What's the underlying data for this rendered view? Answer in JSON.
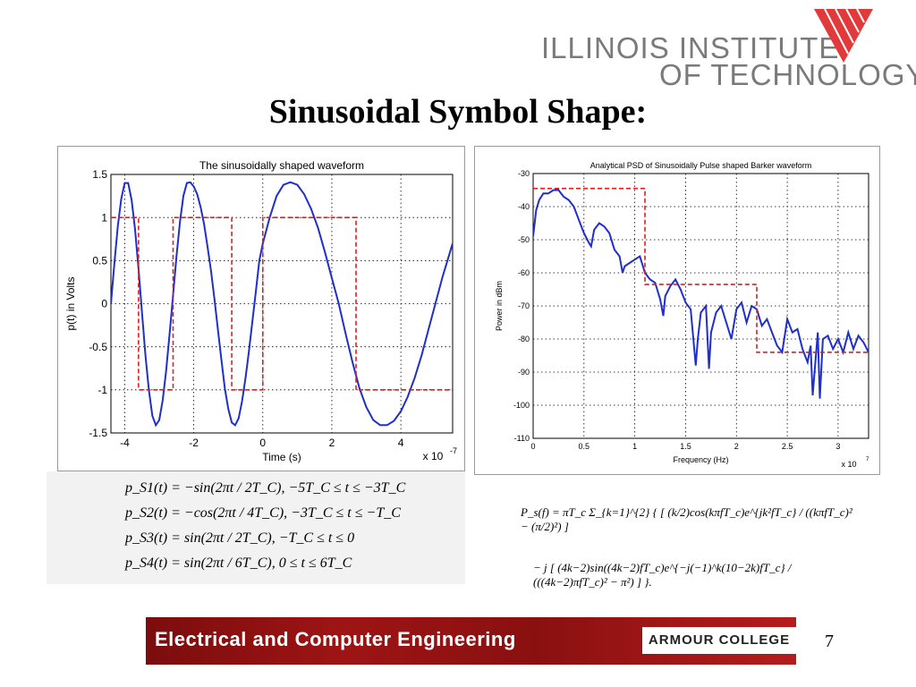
{
  "header": {
    "logo_line1": "ILLINOIS INSTITUTE",
    "logo_line2": "OF TECHNOLOGY",
    "logo_icon": "iit-triangle-logo"
  },
  "slide": {
    "title": "Sinusoidal Symbol Shape:",
    "page_number": "7"
  },
  "footer": {
    "left_text": "Electrical and Computer Engineering",
    "right_text": "ARMOUR COLLEGE",
    "color": "#9e1414"
  },
  "equations_left": [
    "p_S1(t) = −sin(2πt / 2T_C),   −5T_C ≤ t ≤ −3T_C",
    "p_S2(t) = −cos(2πt / 4T_C),   −3T_C ≤ t ≤ −T_C",
    "p_S3(t) = sin(2πt / 2T_C),   −T_C ≤ t ≤ 0",
    "p_S4(t) = sin(2πt / 6T_C),   0 ≤ t ≤ 6T_C"
  ],
  "equation_right": {
    "line1": "P_s(f) = πT_c Σ_{k=1}^{2} { [ (k/2)cos(kπfT_c)e^{jk²fT_c} / ((kπfT_c)² − (π/2)²) ]",
    "line2": "− j [ (4k−2)sin((4k−2)fT_c)e^{−j(−1)^k(10−2k)fT_c} / (((4k−2)πfT_c)² − π²) ] }."
  },
  "chart_data": [
    {
      "type": "line",
      "title": "The sinusoidally shaped waveform",
      "xlabel": "Time (s)",
      "ylabel": "p(t) in Volts",
      "x_multiplier": "x 10",
      "x_multiplier_exp": "-7",
      "xlim": [
        -4.4,
        5.5
      ],
      "ylim": [
        -1.5,
        1.5
      ],
      "xticks": [
        "-4",
        "-2",
        "0",
        "2",
        "4"
      ],
      "yticks": [
        "1.5",
        "1",
        "0.5",
        "0",
        "-0.5",
        "-1",
        "-1.5"
      ],
      "grid": true,
      "series": [
        {
          "color": "#1f2fcc",
          "x": [
            -4.4,
            -4.3,
            -4.2,
            -4.1,
            -4.0,
            -3.9,
            -3.8,
            -3.7,
            -3.6,
            -3.5,
            -3.4,
            -3.3,
            -3.2,
            -3.1,
            -3.0,
            -2.9,
            -2.8,
            -2.7,
            -2.6,
            -2.5,
            -2.4,
            -2.3,
            -2.2,
            -2.1,
            -2.0,
            -1.9,
            -1.8,
            -1.7,
            -1.6,
            -1.5,
            -1.4,
            -1.3,
            -1.2,
            -1.1,
            -1.0,
            -0.9,
            -0.8,
            -0.7,
            -0.6,
            -0.5,
            -0.4,
            -0.3,
            -0.2,
            -0.1,
            0.0,
            0.2,
            0.4,
            0.6,
            0.8,
            1.0,
            1.2,
            1.4,
            1.6,
            1.8,
            2.0,
            2.2,
            2.4,
            2.6,
            2.8,
            3.0,
            3.2,
            3.4,
            3.6,
            3.8,
            4.0,
            4.2,
            4.4,
            4.6,
            4.8,
            5.0,
            5.2,
            5.5
          ],
          "values": [
            0.0,
            0.47,
            0.9,
            1.22,
            1.4,
            1.4,
            1.2,
            0.86,
            0.4,
            -0.1,
            -0.6,
            -1.0,
            -1.3,
            -1.41,
            -1.35,
            -1.12,
            -0.78,
            -0.35,
            0.1,
            0.55,
            0.95,
            1.25,
            1.4,
            1.41,
            1.36,
            1.27,
            1.12,
            0.92,
            0.66,
            0.38,
            0.05,
            -0.3,
            -0.65,
            -0.98,
            -1.22,
            -1.38,
            -1.41,
            -1.33,
            -1.13,
            -0.86,
            -0.55,
            -0.2,
            0.15,
            0.5,
            0.7,
            1.0,
            1.25,
            1.38,
            1.41,
            1.38,
            1.27,
            1.1,
            0.88,
            0.6,
            0.3,
            0.0,
            -0.35,
            -0.68,
            -0.98,
            -1.2,
            -1.35,
            -1.41,
            -1.41,
            -1.36,
            -1.25,
            -1.08,
            -0.86,
            -0.6,
            -0.3,
            0.0,
            0.3,
            0.7
          ]
        },
        {
          "color": "#dd1f1f",
          "style": "dashed",
          "x": [
            -4.4,
            -3.6,
            -3.6,
            -2.6,
            -2.6,
            -0.9,
            -0.9,
            0.0,
            0.0,
            2.7,
            2.7,
            5.5
          ],
          "values": [
            1,
            1,
            -1,
            -1,
            1,
            1,
            -1,
            -1,
            1,
            1,
            -1,
            -1
          ]
        }
      ]
    },
    {
      "type": "line",
      "title": "Analytical PSD of Sinusoidally Pulse shaped Barker waveform",
      "xlabel": "Frequency (Hz)",
      "ylabel": "Power in dBm",
      "x_multiplier": "x 10",
      "x_multiplier_exp": "7",
      "xlim": [
        0,
        3.3
      ],
      "ylim": [
        -110,
        -30
      ],
      "xticks": [
        "0",
        "0.5",
        "1",
        "1.5",
        "2",
        "2.5",
        "3"
      ],
      "yticks": [
        "-30",
        "-40",
        "-50",
        "-60",
        "-70",
        "-80",
        "-90",
        "-100",
        "-110"
      ],
      "grid": true,
      "series": [
        {
          "color": "#1f2fcc",
          "x": [
            0.0,
            0.03,
            0.06,
            0.1,
            0.15,
            0.2,
            0.25,
            0.3,
            0.35,
            0.4,
            0.45,
            0.5,
            0.55,
            0.57,
            0.6,
            0.65,
            0.7,
            0.75,
            0.8,
            0.85,
            0.88,
            0.9,
            0.95,
            1.0,
            1.05,
            1.1,
            1.15,
            1.2,
            1.25,
            1.28,
            1.3,
            1.35,
            1.4,
            1.45,
            1.5,
            1.55,
            1.6,
            1.62,
            1.65,
            1.7,
            1.73,
            1.75,
            1.8,
            1.85,
            1.9,
            1.95,
            2.0,
            2.05,
            2.1,
            2.15,
            2.2,
            2.25,
            2.3,
            2.35,
            2.4,
            2.45,
            2.5,
            2.55,
            2.6,
            2.65,
            2.7,
            2.73,
            2.75,
            2.8,
            2.82,
            2.85,
            2.9,
            2.95,
            3.0,
            3.05,
            3.1,
            3.15,
            3.2,
            3.25,
            3.3
          ],
          "values": [
            -49,
            -41,
            -38,
            -36,
            -36,
            -35,
            -35,
            -37,
            -38,
            -40,
            -44,
            -48,
            -51,
            -52,
            -47,
            -45,
            -46,
            -48,
            -53,
            -55,
            -60,
            -58,
            -57,
            -56,
            -55,
            -60,
            -62,
            -63,
            -68,
            -73,
            -67,
            -64,
            -62,
            -65,
            -69,
            -71,
            -88,
            -80,
            -72,
            -70,
            -89,
            -78,
            -72,
            -70,
            -75,
            -80,
            -71,
            -69,
            -75,
            -70,
            -71,
            -76,
            -74,
            -78,
            -82,
            -84,
            -74,
            -78,
            -77,
            -83,
            -87,
            -82,
            -97,
            -78,
            -98,
            -80,
            -79,
            -83,
            -80,
            -84,
            -78,
            -83,
            -79,
            -81,
            -84
          ]
        },
        {
          "color": "#dd1f1f",
          "style": "dashed",
          "x": [
            0.0,
            1.1,
            1.1,
            2.2,
            2.2,
            3.3
          ],
          "values": [
            -34.5,
            -34.5,
            -63.5,
            -63.5,
            -84,
            -84
          ]
        }
      ]
    }
  ]
}
